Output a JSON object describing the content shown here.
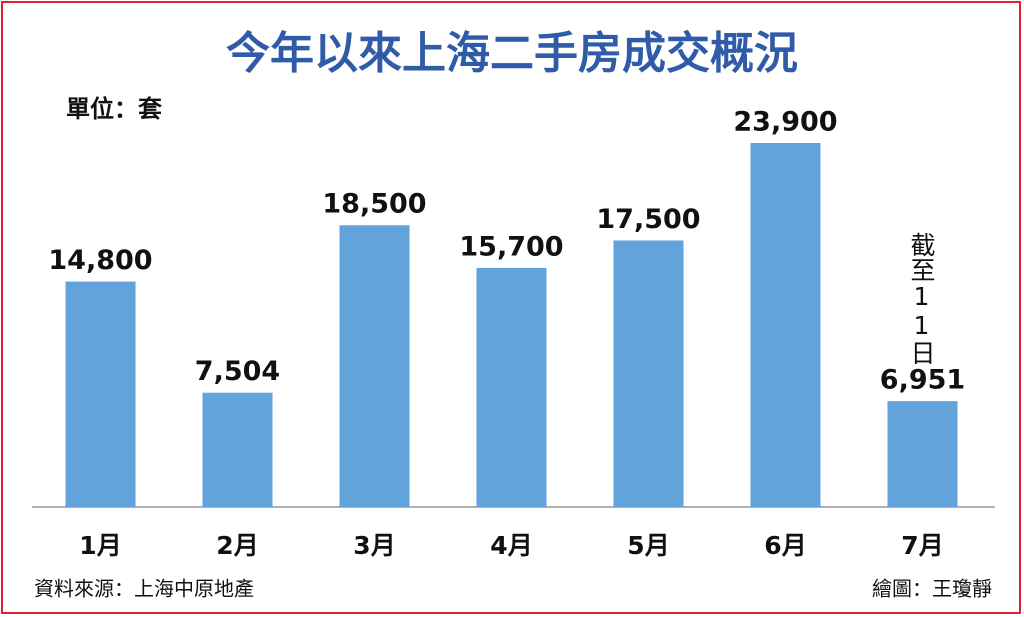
{
  "chart_data": {
    "type": "bar",
    "title": "今年以來上海二手房成交概況",
    "unit": "單位：套",
    "categories": [
      "1月",
      "2月",
      "3月",
      "4月",
      "5月",
      "6月",
      "7月"
    ],
    "values": [
      14800,
      7504,
      18500,
      15700,
      17500,
      23900,
      6951
    ],
    "value_labels": [
      "14,800",
      "7,504",
      "18,500",
      "15,700",
      "17,500",
      "23,900",
      "6,951"
    ],
    "color": "#62a3dc",
    "annotation": "截至11日",
    "source": "資料來源：上海中原地產",
    "credit": "繪圖：王瓊靜"
  }
}
